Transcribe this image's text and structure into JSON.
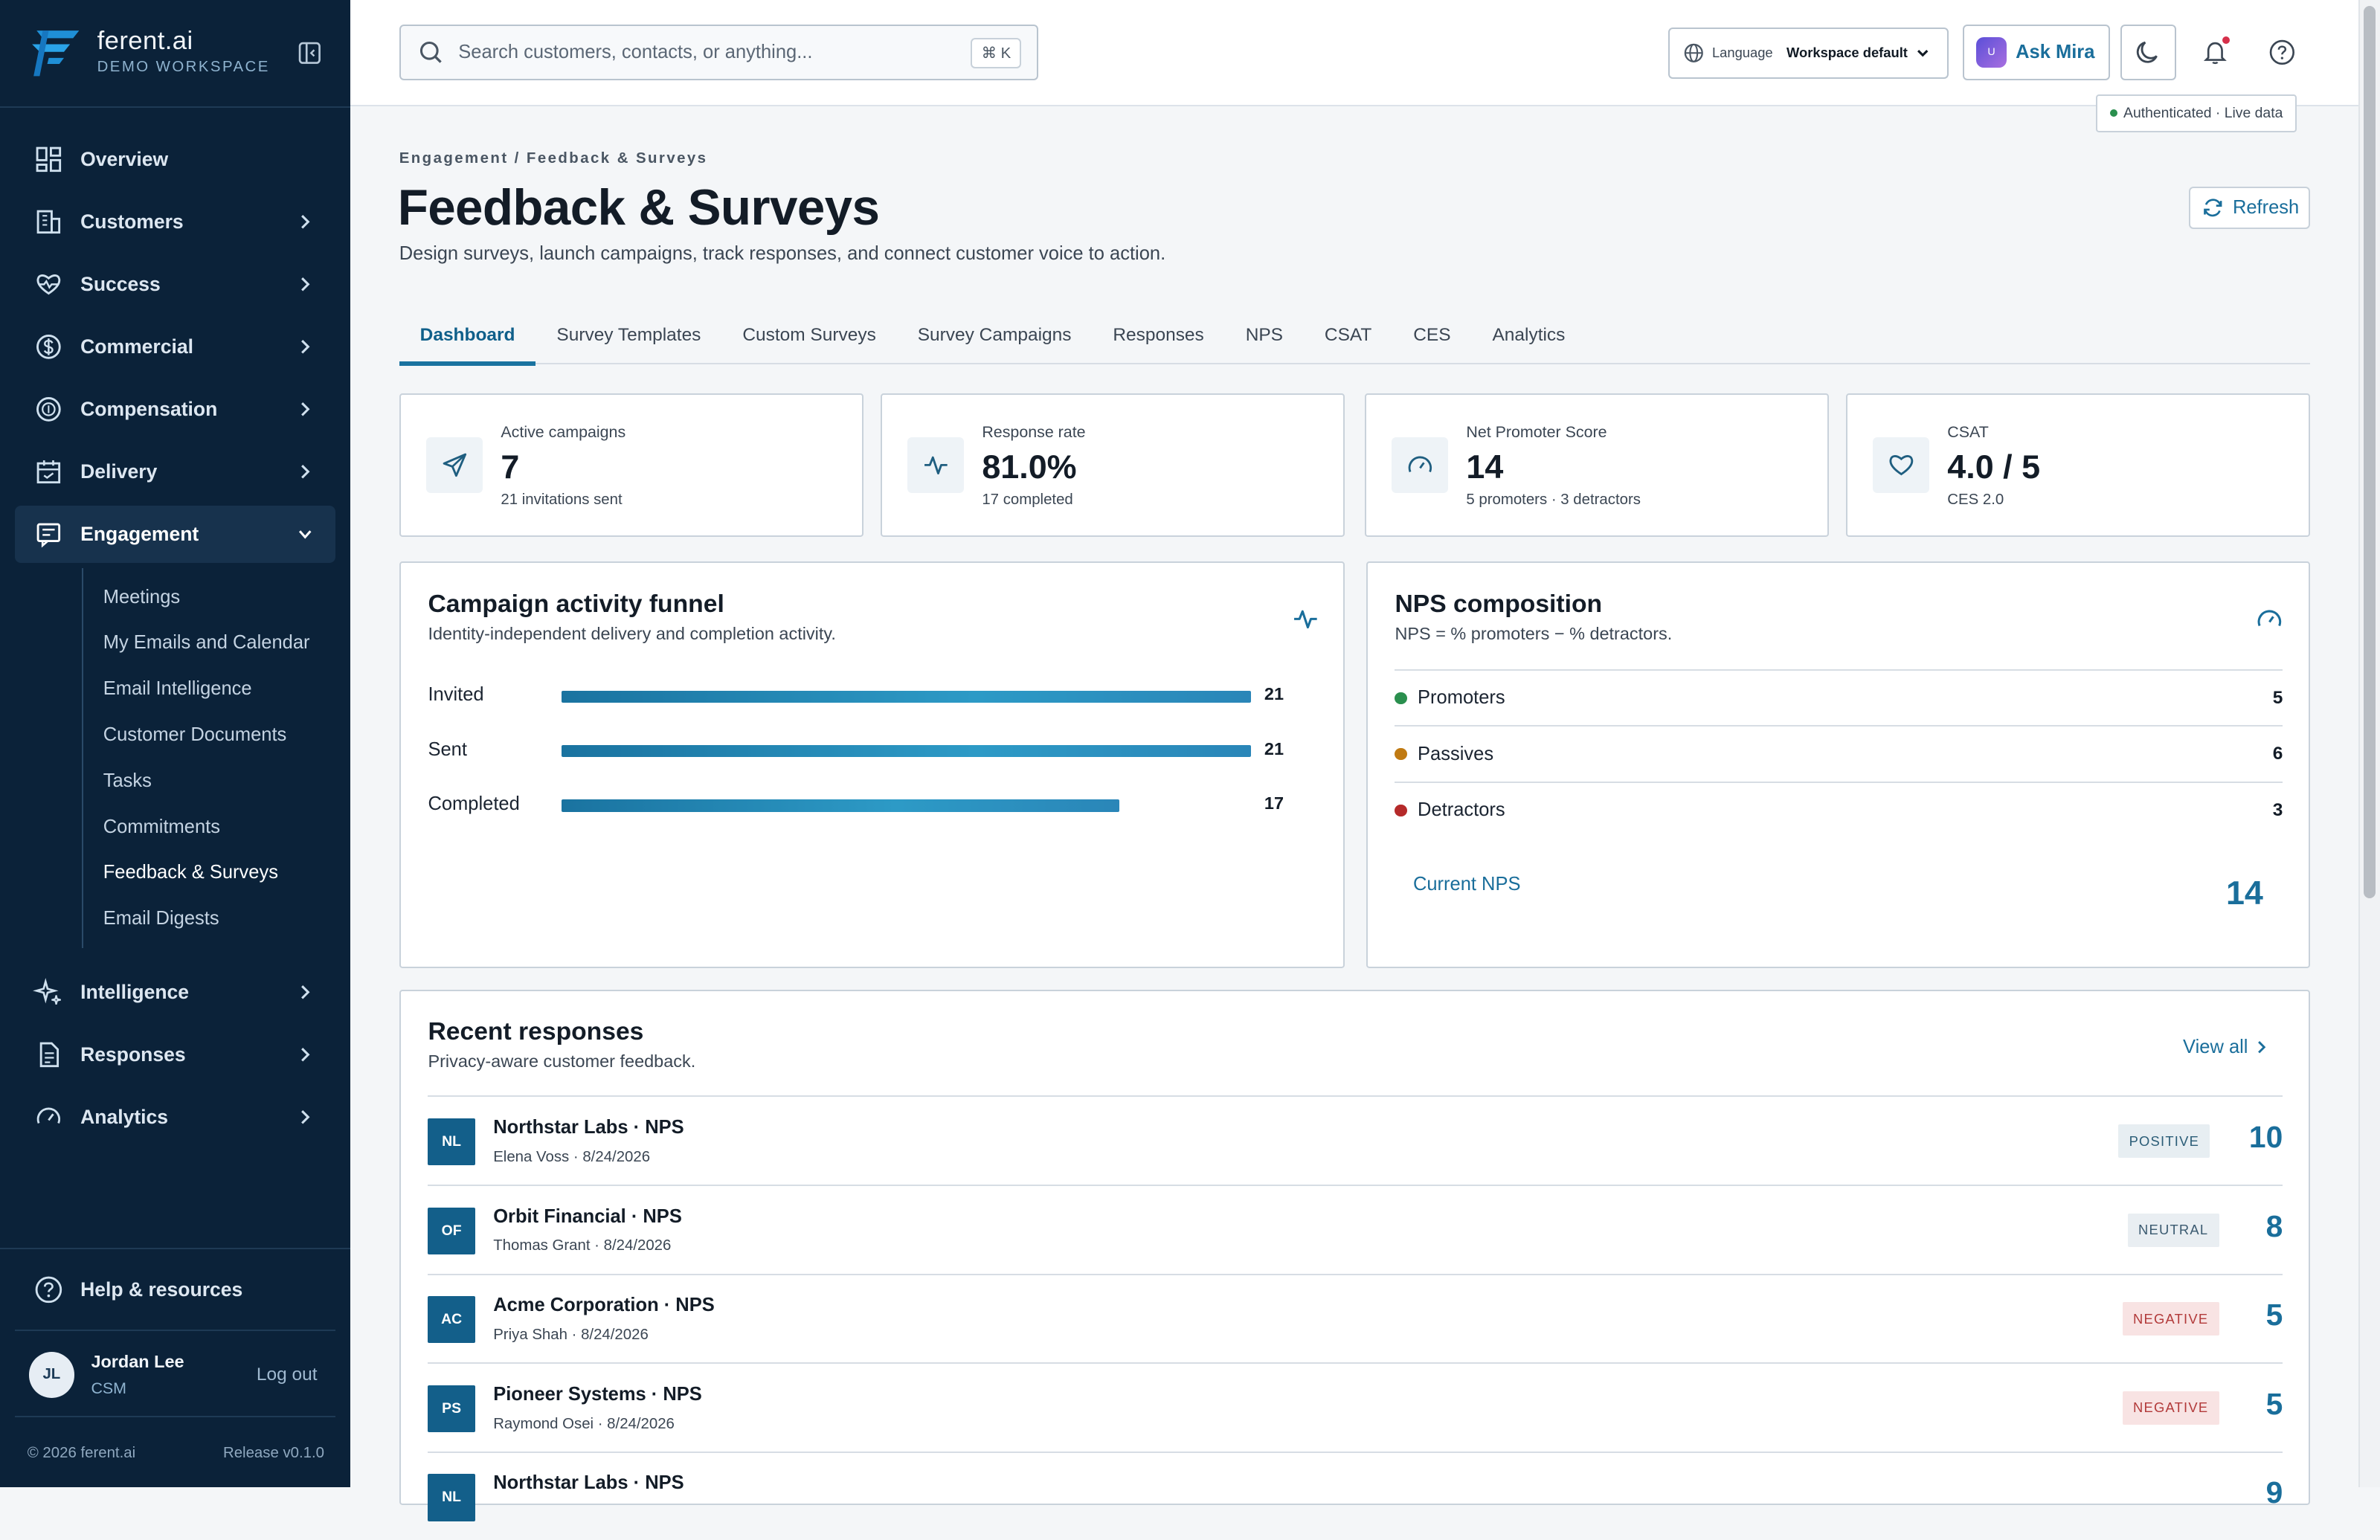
{
  "brand": {
    "name": "ferent.ai",
    "workspace": "DEMO WORKSPACE"
  },
  "sidebar": {
    "items": [
      {
        "label": "Overview",
        "icon": "dashboard-icon"
      },
      {
        "label": "Customers",
        "icon": "building-icon"
      },
      {
        "label": "Success",
        "icon": "heart-pulse-icon"
      },
      {
        "label": "Commercial",
        "icon": "dollar-icon"
      },
      {
        "label": "Compensation",
        "icon": "coins-icon"
      },
      {
        "label": "Delivery",
        "icon": "calendar-icon"
      },
      {
        "label": "Engagement",
        "icon": "message-icon"
      },
      {
        "label": "Intelligence",
        "icon": "sparkle-icon"
      },
      {
        "label": "Responses",
        "icon": "document-icon"
      },
      {
        "label": "Analytics",
        "icon": "gauge-icon"
      }
    ],
    "engagement_sub": [
      "Meetings",
      "My Emails and Calendar",
      "Email Intelligence",
      "Customer Documents",
      "Tasks",
      "Commitments",
      "Feedback & Surveys",
      "Email Digests"
    ],
    "help": "Help & resources",
    "user": {
      "initials": "JL",
      "name": "Jordan Lee",
      "role": "CSM",
      "logout": "Log out"
    },
    "footer": {
      "copyright": "© 2026 ferent.ai",
      "release": "Release v0.1.0"
    }
  },
  "topbar": {
    "search_placeholder": "Search customers, contacts, or anything...",
    "shortcut": "⌘  K",
    "language_label": "Language",
    "language_value": "Workspace default",
    "ask_mira": "Ask Mira",
    "mira_badge": "U",
    "auth_status": "Authenticated · Live data"
  },
  "page": {
    "breadcrumb": "Engagement / Feedback & Surveys",
    "title": "Feedback & Surveys",
    "subtitle": "Design surveys, launch campaigns, track responses, and connect customer voice to action.",
    "refresh": "Refresh"
  },
  "tabs": [
    "Dashboard",
    "Survey Templates",
    "Custom Surveys",
    "Survey Campaigns",
    "Responses",
    "NPS",
    "CSAT",
    "CES",
    "Analytics"
  ],
  "kpis": [
    {
      "label": "Active campaigns",
      "value": "7",
      "sub": "21 invitations sent",
      "icon": "send-icon"
    },
    {
      "label": "Response rate",
      "value": "81.0%",
      "sub": "17 completed",
      "icon": "activity-icon"
    },
    {
      "label": "Net Promoter Score",
      "value": "14",
      "sub": "5 promoters · 3 detractors",
      "icon": "gauge-icon"
    },
    {
      "label": "CSAT",
      "value": "4.0 / 5",
      "sub": "CES 2.0",
      "icon": "heart-icon"
    }
  ],
  "funnel": {
    "title": "Campaign activity funnel",
    "subtitle": "Identity-independent delivery and completion activity.",
    "max": 21,
    "rows": [
      {
        "label": "Invited",
        "value": 21
      },
      {
        "label": "Sent",
        "value": 21
      },
      {
        "label": "Completed",
        "value": 17
      }
    ]
  },
  "nps": {
    "title": "NPS composition",
    "subtitle": "NPS = % promoters − % detractors.",
    "rows": [
      {
        "label": "Promoters",
        "value": "5",
        "color": "#2a8f4e"
      },
      {
        "label": "Passives",
        "value": "6",
        "color": "#c07a12"
      },
      {
        "label": "Detractors",
        "value": "3",
        "color": "#b52a2a"
      }
    ],
    "current_label": "Current NPS",
    "current_value": "14"
  },
  "recent": {
    "title": "Recent responses",
    "subtitle": "Privacy-aware customer feedback.",
    "view_all": "View all",
    "rows": [
      {
        "initials": "NL",
        "title": "Northstar Labs · NPS",
        "meta": "Elena Voss · 8/24/2026",
        "sentiment": "POSITIVE",
        "score": "10"
      },
      {
        "initials": "OF",
        "title": "Orbit Financial · NPS",
        "meta": "Thomas Grant · 8/24/2026",
        "sentiment": "NEUTRAL",
        "score": "8"
      },
      {
        "initials": "AC",
        "title": "Acme Corporation · NPS",
        "meta": "Priya Shah · 8/24/2026",
        "sentiment": "NEGATIVE",
        "score": "5"
      },
      {
        "initials": "PS",
        "title": "Pioneer Systems · NPS",
        "meta": "Raymond Osei · 8/24/2026",
        "sentiment": "NEGATIVE",
        "score": "5"
      },
      {
        "initials": "NL",
        "title": "Northstar Labs · NPS",
        "meta": "",
        "sentiment": "",
        "score": "9"
      }
    ]
  }
}
